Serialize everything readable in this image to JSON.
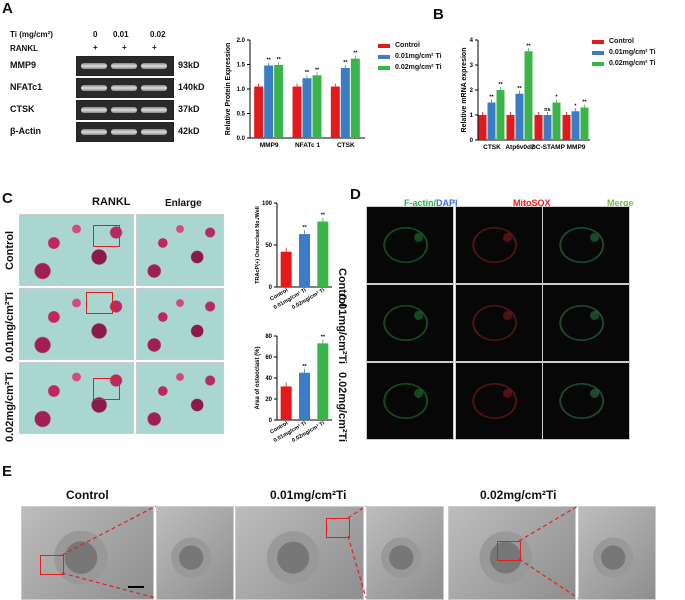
{
  "panels": {
    "A": "A",
    "B": "B",
    "C": "C",
    "D": "D",
    "E": "E"
  },
  "panelA": {
    "conc_header": "Ti (mg/cm²)",
    "conc_values": [
      "0",
      "0.01",
      "0.02"
    ],
    "rankl_label": "RANKL",
    "rankl_marks": [
      "+",
      "+",
      "+"
    ],
    "proteins": [
      "MMP9",
      "NFATc1",
      "CTSK",
      "β-Actin"
    ],
    "sizes": [
      "93kD",
      "140kD",
      "37kD",
      "42kD"
    ]
  },
  "legend": [
    "Control",
    "0.01mg/cm² Ti",
    "0.02mg/cm² Ti"
  ],
  "colors": {
    "control": "#e31a1c",
    "low": "#3a7dc4",
    "high": "#3bb54a"
  },
  "chart_data": [
    {
      "type": "bar",
      "ylabel": "Relative Protein Expression",
      "categories": [
        "MMP9",
        "NFATc 1",
        "CTSK"
      ],
      "ylim": [
        0,
        2.0
      ],
      "yticks": [
        0,
        0.5,
        1.0,
        1.5,
        2.0
      ],
      "series": [
        {
          "name": "Control",
          "values": [
            1.05,
            1.05,
            1.05
          ]
        },
        {
          "name": "0.01mg/cm² Ti",
          "values": [
            1.48,
            1.22,
            1.43
          ]
        },
        {
          "name": "0.02mg/cm² Ti",
          "values": [
            1.49,
            1.28,
            1.62
          ]
        }
      ],
      "sig": [
        [
          "**",
          "**"
        ],
        [
          "**",
          "**"
        ],
        [
          "**",
          "**"
        ]
      ]
    },
    {
      "type": "bar",
      "ylabel": "Relative mRNA expresion",
      "categories": [
        "CTSK",
        "Atp6v0d2",
        "DC-STAMP",
        "MMP9"
      ],
      "ylim": [
        0,
        4
      ],
      "yticks": [
        0,
        1,
        2,
        3,
        4
      ],
      "series": [
        {
          "name": "Control",
          "values": [
            1.0,
            1.0,
            1.0,
            1.0
          ]
        },
        {
          "name": "0.01mg/cm² Ti",
          "values": [
            1.5,
            1.85,
            1.0,
            1.15
          ]
        },
        {
          "name": "0.02mg/cm² Ti",
          "values": [
            2.0,
            3.55,
            1.5,
            1.3
          ]
        }
      ],
      "sig": [
        [
          "**",
          "**"
        ],
        [
          "**",
          "**"
        ],
        [
          "ns",
          "*"
        ],
        [
          "*",
          "**"
        ]
      ]
    },
    {
      "type": "bar",
      "ylabel": "TRAcP(+) Osteoclast No./Well",
      "categories": [
        "Control",
        "0.01mg/cm² Ti",
        "0.02mg/cm² Ti"
      ],
      "ylim": [
        0,
        100
      ],
      "yticks": [
        0,
        50,
        100
      ],
      "values": [
        42,
        63,
        78
      ],
      "sig": [
        "",
        "**",
        "**"
      ]
    },
    {
      "type": "bar",
      "ylabel": "Area of osteoclast (%)",
      "categories": [
        "Control",
        "0.01mg/cm² Ti",
        "0.02mg/cm² Ti"
      ],
      "ylim": [
        0,
        80
      ],
      "yticks": [
        0,
        20,
        40,
        60,
        80
      ],
      "values": [
        32,
        45,
        73
      ],
      "sig": [
        "",
        "**",
        "**"
      ]
    }
  ],
  "panelC": {
    "col1": "RANKL",
    "col2": "Enlarge",
    "rows": [
      "Control",
      "0.01mg/cm²Ti",
      "0.02mg/cm²Ti"
    ]
  },
  "panelD": {
    "col1a": "F-actin",
    "col1sep": "/",
    "col1b": "DAPI",
    "col2": "MitoSOX",
    "col3": "Merge",
    "rows": [
      "Control",
      "0.01mg/cm²Ti",
      "0.02mg/cm²Ti"
    ]
  },
  "panelE": {
    "labels": [
      "Control",
      "0.01mg/cm²Ti",
      "0.02mg/cm²Ti"
    ]
  }
}
